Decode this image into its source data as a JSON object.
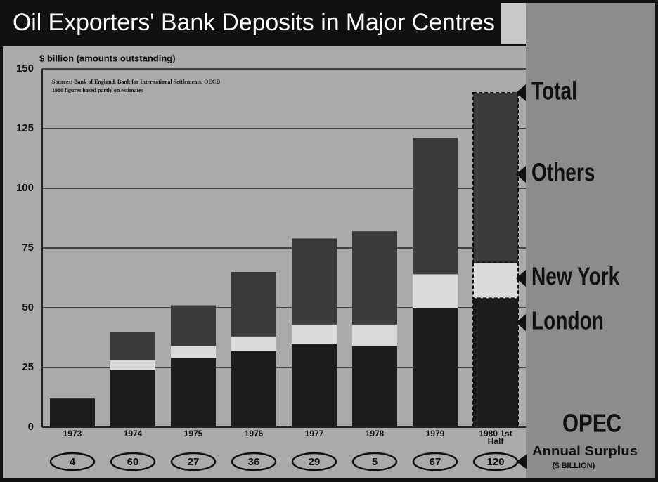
{
  "chart_data": {
    "type": "stacked-bar",
    "title": "Oil Exporters' Bank Deposits in Major Centres",
    "y_label": "$ billion (amounts outstanding)",
    "source": "Sources: Bank of England, Bank for International Settlements, OECD",
    "note": "1980 figures based partly on estimates",
    "categories": [
      "1973",
      "1974",
      "1975",
      "1976",
      "1977",
      "1978",
      "1979",
      "1980 1st Half"
    ],
    "series": [
      {
        "name": "London",
        "color": "#1c1c1c",
        "values": [
          12,
          24,
          29,
          32,
          35,
          34,
          50,
          54
        ]
      },
      {
        "name": "New York",
        "color": "#d9d9d9",
        "values": [
          0,
          4,
          5,
          6,
          8,
          9,
          14,
          15
        ]
      },
      {
        "name": "Others",
        "color": "#3b3b3b",
        "values": [
          0,
          12,
          17,
          27,
          36,
          39,
          57,
          71
        ]
      }
    ],
    "total_label": "Total",
    "ylim": [
      0,
      150
    ],
    "yticks": [
      0,
      25,
      50,
      75,
      100,
      125,
      150
    ],
    "grid": true,
    "opec_surplus": {
      "label": "OPEC",
      "sublabel": "Annual Surplus",
      "unit": "($ BILLION)",
      "values": [
        4,
        60,
        27,
        36,
        29,
        5,
        67,
        120
      ]
    }
  }
}
